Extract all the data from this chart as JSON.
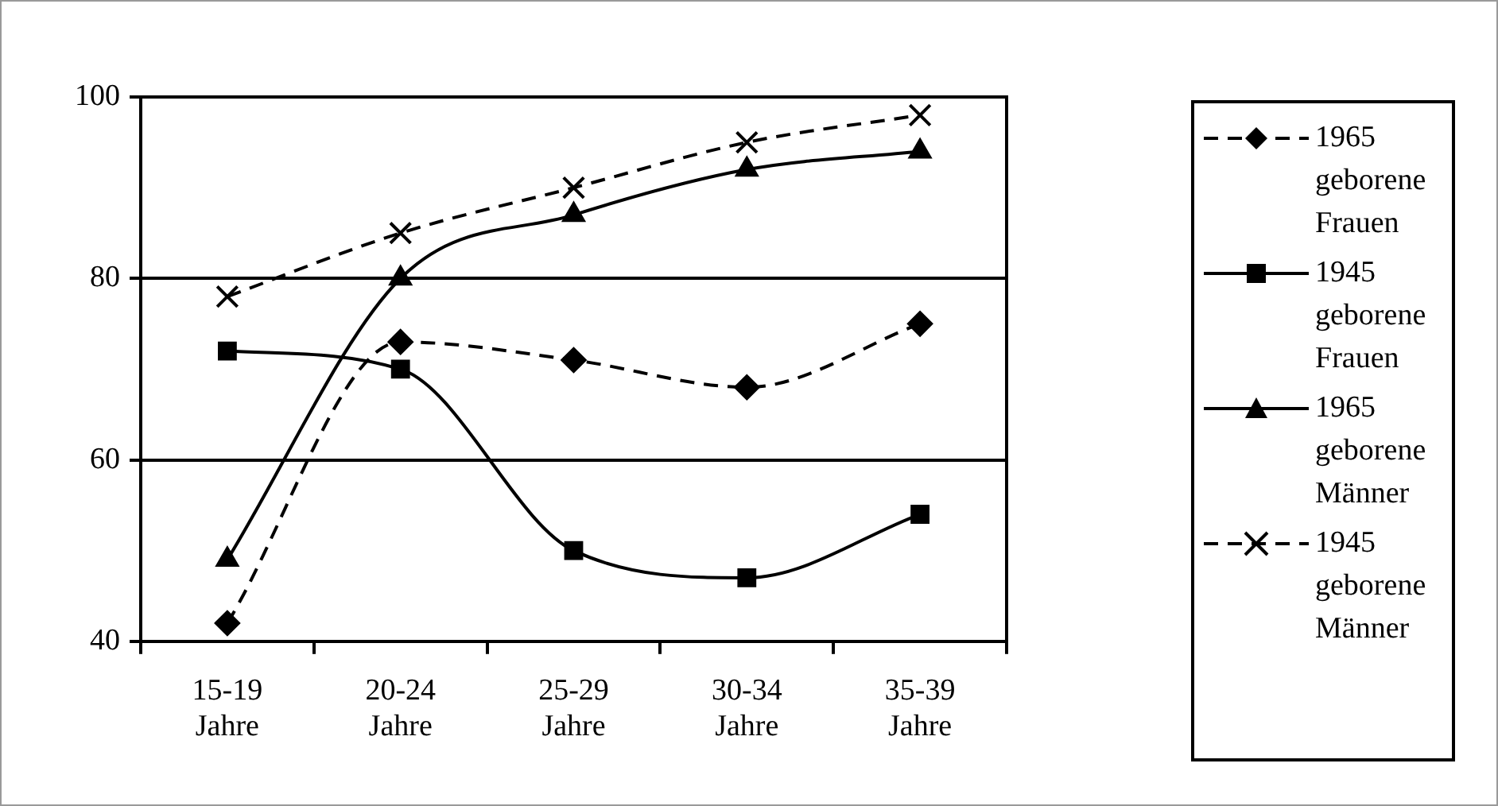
{
  "chart_data": {
    "type": "line",
    "categories": [
      "15-19 Jahre",
      "20-24 Jahre",
      "25-29 Jahre",
      "30-34 Jahre",
      "35-39 Jahre"
    ],
    "series": [
      {
        "name": "1965 geborene Frauen",
        "color": "#000000",
        "marker": "diamond",
        "line_style": "dashed",
        "values": [
          42,
          73,
          71,
          68,
          75
        ]
      },
      {
        "name": "1945 geborene Frauen",
        "color": "#000000",
        "marker": "square",
        "line_style": "solid",
        "values": [
          72,
          70,
          50,
          47,
          54
        ]
      },
      {
        "name": "1965 geborene Männer",
        "color": "#000000",
        "marker": "triangle",
        "line_style": "solid",
        "values": [
          49,
          80,
          87,
          92,
          94
        ]
      },
      {
        "name": "1945 geborene Männer",
        "color": "#000000",
        "marker": "cross",
        "line_style": "dashed",
        "values": [
          78,
          85,
          90,
          95,
          98
        ]
      }
    ],
    "ylim": [
      40,
      100
    ],
    "yticks": [
      40,
      60,
      80,
      100
    ],
    "grid": "y",
    "legend": "right"
  }
}
